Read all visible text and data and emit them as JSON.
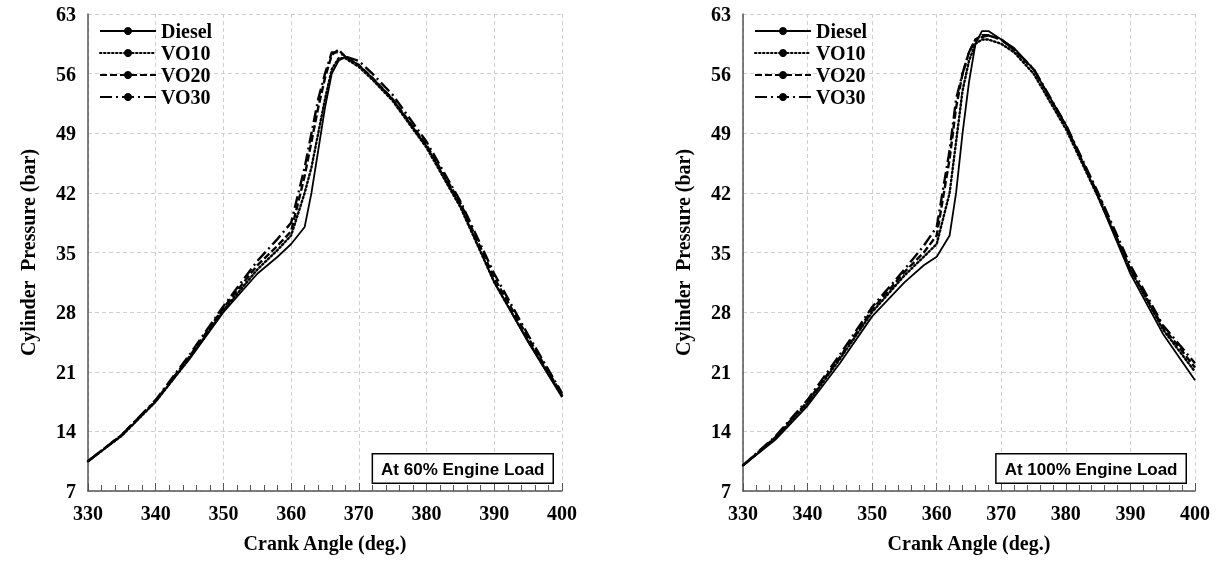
{
  "chart_data": [
    {
      "type": "line",
      "xlabel": "Crank Angle (deg.)",
      "ylabel": "Cylinder  Pressure (bar)",
      "annotations": [
        "At 60% Engine Load"
      ],
      "xlim": [
        330,
        400
      ],
      "xticks": [
        330,
        340,
        350,
        360,
        370,
        380,
        390,
        400
      ],
      "ylim": [
        7,
        63
      ],
      "yticks": [
        7,
        14,
        21,
        28,
        35,
        42,
        49,
        56,
        63
      ],
      "grid": true,
      "legend": "top left",
      "marker": "none",
      "x": [
        330,
        335,
        340,
        345,
        350,
        355,
        358,
        360,
        362,
        363,
        364,
        365,
        366,
        367,
        368,
        370,
        372,
        375,
        380,
        385,
        390,
        395,
        400
      ],
      "series": [
        {
          "name": "Diesel",
          "color": "#000000",
          "line_style": "solid",
          "values": [
            10.5,
            13.5,
            17.5,
            22.5,
            28,
            32.5,
            34.5,
            36,
            38,
            42,
            47,
            52,
            56,
            57.5,
            58,
            57,
            55.5,
            53,
            47.5,
            40.5,
            31.5,
            24.5,
            18
          ]
        },
        {
          "name": "VO10",
          "color": "#000000",
          "line_style": "dotted",
          "values": [
            10.5,
            13.5,
            17.5,
            22.6,
            28.2,
            33,
            35.3,
            37,
            42,
            45,
            49,
            53,
            56.5,
            57.8,
            57.8,
            56.8,
            55.3,
            52.8,
            47.3,
            40.3,
            31.5,
            24.6,
            18.2
          ]
        },
        {
          "name": "VO20",
          "color": "#000000",
          "line_style": "dashed",
          "values": [
            10.5,
            13.6,
            17.6,
            22.8,
            28.5,
            33.5,
            35.8,
            37.5,
            44,
            48,
            52,
            55.5,
            58.2,
            58.8,
            58,
            57,
            55.5,
            53,
            47.6,
            40.8,
            32,
            25,
            18.3
          ]
        },
        {
          "name": "VO30",
          "color": "#000000",
          "line_style": "dashdot",
          "values": [
            10.5,
            13.6,
            17.7,
            23,
            28.7,
            34,
            36.6,
            38.5,
            45,
            49,
            53,
            56,
            58.5,
            58.5,
            58,
            57.5,
            56,
            53.5,
            48,
            41,
            32.5,
            25.3,
            18.5
          ]
        }
      ]
    },
    {
      "type": "line",
      "xlabel": "Crank Angle (deg.)",
      "ylabel": "Cylinder  Pressure (bar)",
      "annotations": [
        "At 100% Engine Load"
      ],
      "xlim": [
        330,
        400
      ],
      "xticks": [
        330,
        340,
        350,
        360,
        370,
        380,
        390,
        400
      ],
      "ylim": [
        7,
        63
      ],
      "yticks": [
        7,
        14,
        21,
        28,
        35,
        42,
        49,
        56,
        63
      ],
      "grid": true,
      "legend": "top left",
      "marker": "none",
      "x": [
        330,
        335,
        340,
        345,
        350,
        355,
        358,
        360,
        362,
        363,
        364,
        365,
        366,
        367,
        368,
        370,
        372,
        375,
        380,
        385,
        390,
        395,
        400
      ],
      "series": [
        {
          "name": "Diesel",
          "color": "#000000",
          "line_style": "solid",
          "values": [
            10,
            13,
            17,
            22,
            27.5,
            31.5,
            33.5,
            34.5,
            37,
            42,
            49,
            55,
            59.5,
            61,
            61,
            60,
            59,
            56.5,
            50,
            41.5,
            32.5,
            25.5,
            20
          ]
        },
        {
          "name": "VO10",
          "color": "#000000",
          "line_style": "dotted",
          "values": [
            10,
            13.2,
            17.3,
            22.5,
            28,
            32.3,
            34.5,
            36,
            42,
            48,
            54,
            57.5,
            59.5,
            60,
            60,
            59.5,
            58.5,
            56,
            49.5,
            41.5,
            33,
            26,
            21
          ]
        },
        {
          "name": "VO20",
          "color": "#000000",
          "line_style": "dashed",
          "values": [
            10,
            13.3,
            17.5,
            22.7,
            28.3,
            32.7,
            35,
            37,
            46,
            52,
            56,
            58.5,
            60,
            60.5,
            60.5,
            60,
            58.8,
            56.5,
            49.8,
            41.8,
            33,
            26.3,
            21.5
          ]
        },
        {
          "name": "VO30",
          "color": "#000000",
          "line_style": "dashdot",
          "values": [
            10,
            13.4,
            17.7,
            23,
            28.6,
            33,
            35.8,
            38,
            47,
            53,
            56,
            58.5,
            60,
            60.3,
            60.5,
            60,
            58.8,
            56.6,
            50,
            42,
            33.5,
            26.5,
            22
          ]
        }
      ]
    }
  ]
}
